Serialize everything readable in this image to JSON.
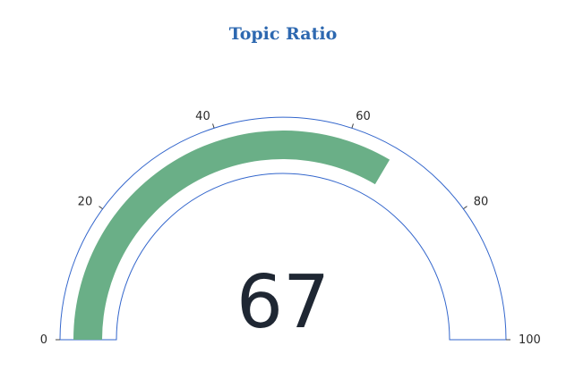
{
  "chart_data": {
    "type": "gauge",
    "title": "Topic Ratio",
    "value": 67,
    "display_value": "67",
    "range": [
      0,
      100
    ],
    "ticks": [
      0,
      20,
      40,
      60,
      80,
      100
    ],
    "tick_labels": [
      "0",
      "20",
      "40",
      "60",
      "80",
      "100"
    ],
    "bar_color": "#6aaf87",
    "outline_color": "#3366cc",
    "title_color": "#2d68b0",
    "value_color": "#1f2733"
  }
}
